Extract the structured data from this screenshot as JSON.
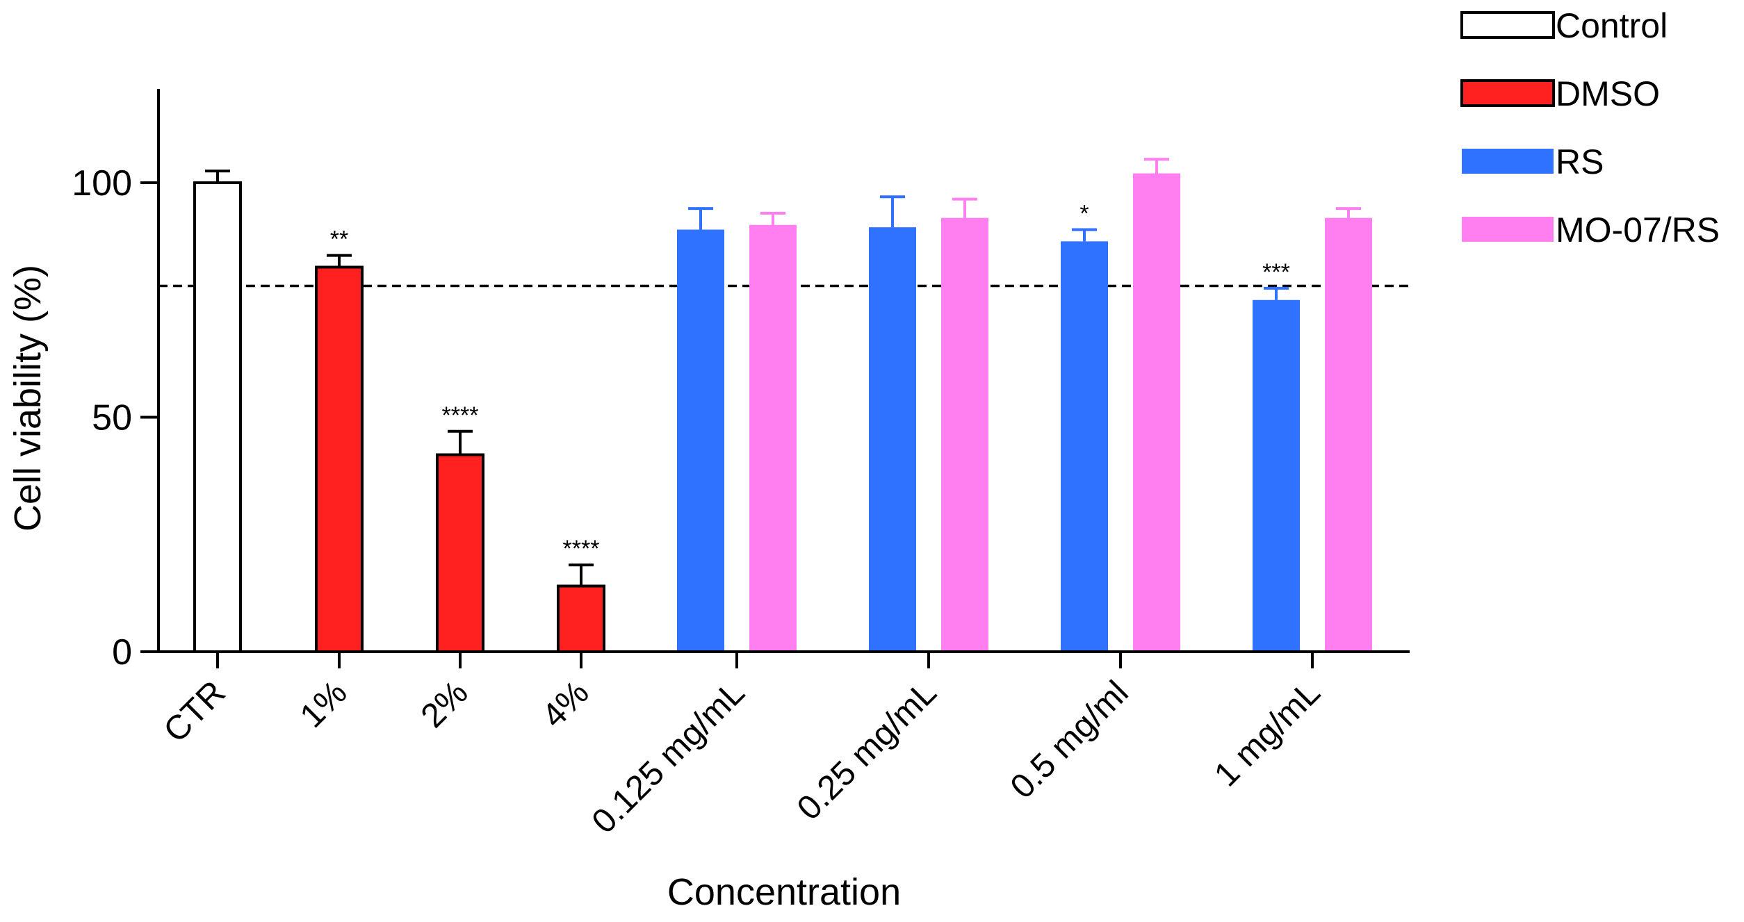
{
  "chart_data": {
    "type": "bar",
    "xlabel": "Concentration",
    "ylabel": "Cell viability (%)",
    "ylim": [
      0,
      120
    ],
    "yticks": [
      0,
      50,
      100
    ],
    "reference_line": 78,
    "groups": [
      {
        "label": "CTR",
        "bars": [
          {
            "series": "Control",
            "value": 100,
            "error": 2.5,
            "sig": ""
          }
        ]
      },
      {
        "label": "1%",
        "bars": [
          {
            "series": "DMSO",
            "value": 82,
            "error": 2.5,
            "sig": "**"
          }
        ]
      },
      {
        "label": "2%",
        "bars": [
          {
            "series": "DMSO",
            "value": 42,
            "error": 5,
            "sig": "****"
          }
        ]
      },
      {
        "label": "4%",
        "bars": [
          {
            "series": "DMSO",
            "value": 14,
            "error": 4.5,
            "sig": "****"
          }
        ]
      },
      {
        "label": "0.125 mg/mL",
        "bars": [
          {
            "series": "RS",
            "value": 90,
            "error": 4.5,
            "sig": ""
          },
          {
            "series": "MO-07/RS",
            "value": 91,
            "error": 2.5,
            "sig": ""
          }
        ]
      },
      {
        "label": "0.25 mg/mL",
        "bars": [
          {
            "series": "RS",
            "value": 90.5,
            "error": 6.5,
            "sig": ""
          },
          {
            "series": "MO-07/RS",
            "value": 92.5,
            "error": 4,
            "sig": ""
          }
        ]
      },
      {
        "label": "0.5 mg/ml",
        "bars": [
          {
            "series": "RS",
            "value": 87.5,
            "error": 2.5,
            "sig": "*"
          },
          {
            "series": "MO-07/RS",
            "value": 102,
            "error": 3,
            "sig": ""
          }
        ]
      },
      {
        "label": "1 mg/mL",
        "bars": [
          {
            "series": "RS",
            "value": 75,
            "error": 2.5,
            "sig": "***"
          },
          {
            "series": "MO-07/RS",
            "value": 92.5,
            "error": 2,
            "sig": ""
          }
        ]
      }
    ],
    "legend": [
      {
        "name": "Control",
        "color": "#ffffff",
        "stroke": "#000000"
      },
      {
        "name": "DMSO",
        "color": "#ff2020",
        "stroke": "#000000"
      },
      {
        "name": "RS",
        "color": "#2f72ff",
        "stroke": "#2f72ff"
      },
      {
        "name": "MO-07/RS",
        "color": "#ff7ff0",
        "stroke": "#ff7ff0"
      }
    ]
  }
}
